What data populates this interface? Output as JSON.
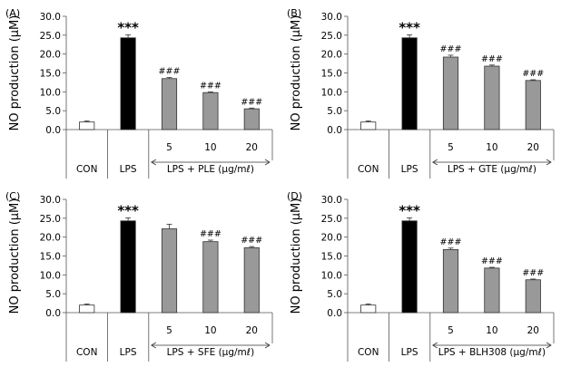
{
  "chart_data": [
    {
      "type": "bar",
      "panel_label": "(A)",
      "ylabel": "NO production (μM)",
      "ylim": [
        0,
        30
      ],
      "yticks": [
        "0.0",
        "5.0",
        "10.0",
        "15.0",
        "20.0",
        "25.0",
        "30.0"
      ],
      "categories": [
        "CON",
        "LPS",
        "5",
        "10",
        "20"
      ],
      "values": [
        2.0,
        24.3,
        13.5,
        9.8,
        5.5
      ],
      "errors": [
        0.3,
        0.8,
        0.3,
        0.2,
        0.2
      ],
      "significance": [
        "",
        "***",
        "###",
        "###",
        "###"
      ],
      "treatment_label": "LPS + PLE (μg/mℓ)"
    },
    {
      "type": "bar",
      "panel_label": "(B)",
      "ylabel": "NO production (μM)",
      "ylim": [
        0,
        30
      ],
      "yticks": [
        "0.0",
        "5.0",
        "10.0",
        "15.0",
        "20.0",
        "25.0",
        "30.0"
      ],
      "categories": [
        "CON",
        "LPS",
        "5",
        "10",
        "20"
      ],
      "values": [
        2.0,
        24.3,
        19.2,
        16.8,
        13.0
      ],
      "errors": [
        0.3,
        0.8,
        0.5,
        0.3,
        0.2
      ],
      "significance": [
        "",
        "***",
        "###",
        "###",
        "###"
      ],
      "treatment_label": "LPS + GTE (μg/mℓ)"
    },
    {
      "type": "bar",
      "panel_label": "(C)",
      "ylabel": "NO production (μM)",
      "ylim": [
        0,
        30
      ],
      "yticks": [
        "0.0",
        "5.0",
        "10.0",
        "15.0",
        "20.0",
        "25.0",
        "30.0"
      ],
      "categories": [
        "CON",
        "LPS",
        "5",
        "10",
        "20"
      ],
      "values": [
        2.0,
        24.3,
        22.2,
        18.8,
        17.2
      ],
      "errors": [
        0.3,
        0.8,
        1.2,
        0.4,
        0.3
      ],
      "significance": [
        "",
        "***",
        "",
        "###",
        "###"
      ],
      "treatment_label": "LPS + SFE (μg/mℓ)"
    },
    {
      "type": "bar",
      "panel_label": "(D)",
      "ylabel": "NO production (μM)",
      "ylim": [
        0,
        30
      ],
      "yticks": [
        "0.0",
        "5.0",
        "10.0",
        "15.0",
        "20.0",
        "25.0",
        "30.0"
      ],
      "categories": [
        "CON",
        "LPS",
        "5",
        "10",
        "20"
      ],
      "values": [
        2.0,
        24.3,
        16.7,
        11.8,
        8.7
      ],
      "errors": [
        0.3,
        0.8,
        0.4,
        0.2,
        0.2
      ],
      "significance": [
        "",
        "***",
        "###",
        "###",
        "###"
      ],
      "treatment_label": "LPS + BLH308 (μg/mℓ)"
    }
  ],
  "colors": {
    "con_bar": "#ffffff",
    "lps_bar": "#000000",
    "treated_bar": "#999999",
    "outline": "#333333",
    "axis": "#555555"
  }
}
